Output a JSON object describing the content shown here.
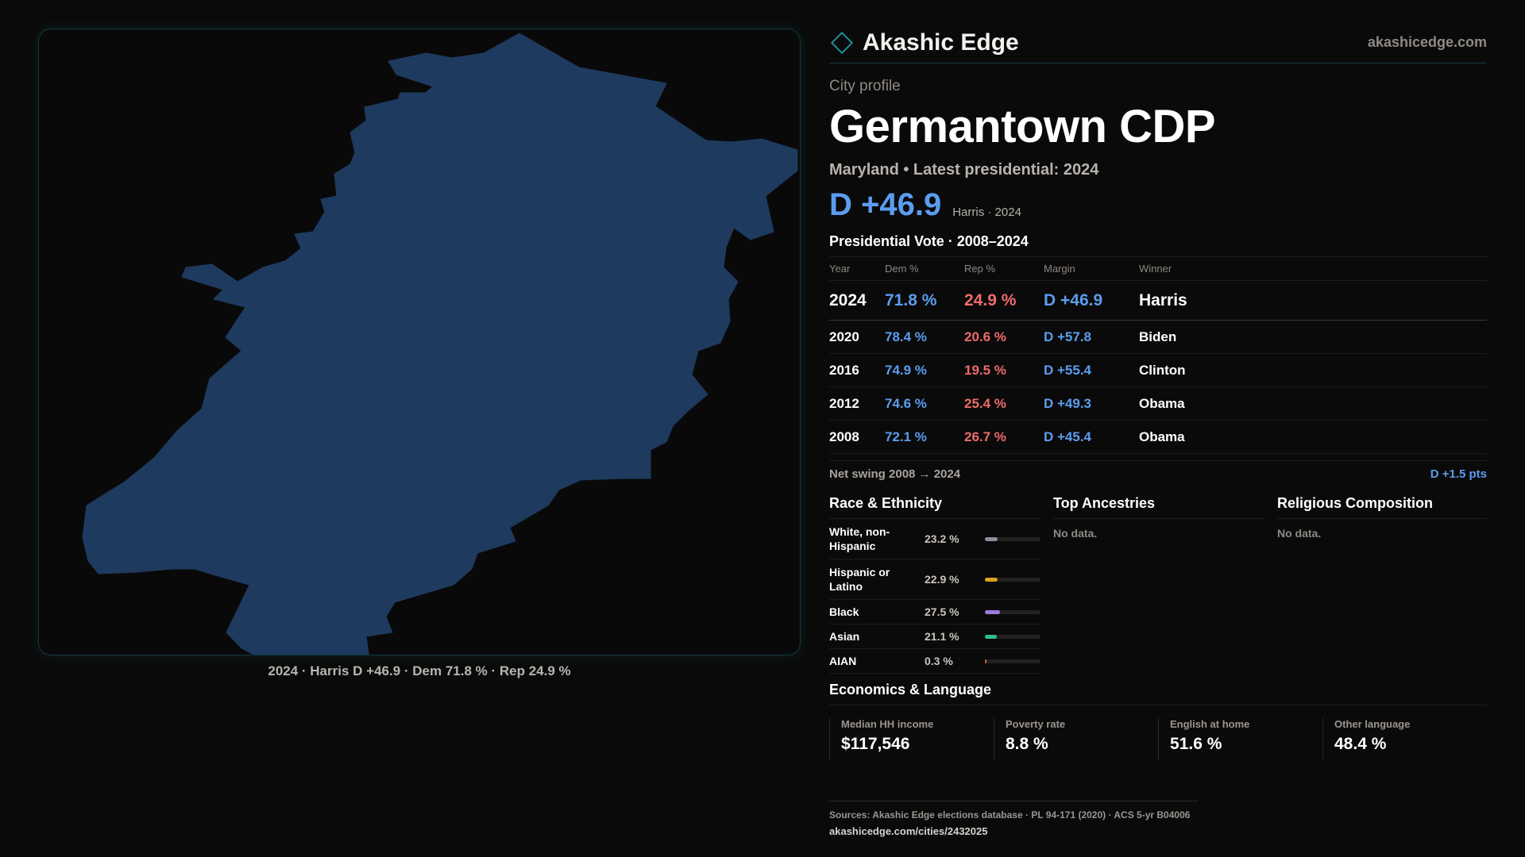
{
  "brand": {
    "name": "Akashic Edge",
    "url": "akashicedge.com"
  },
  "profile": {
    "kicker": "City profile",
    "title": "Germantown CDP",
    "subtitle": "Maryland • Latest presidential: 2024",
    "headline_margin": "D +46.9",
    "headline_note": "Harris · 2024"
  },
  "map": {
    "caption": "2024 · Harris D +46.9 · Dem 71.8 % · Rep 24.9 %",
    "fill_color": "#1e3a5f",
    "border_color": "#0f3a40"
  },
  "presidential": {
    "title": "Presidential Vote · 2008–2024",
    "headers": [
      "Year",
      "Dem %",
      "Rep %",
      "Margin",
      "Winner"
    ],
    "rows": [
      {
        "year": "2024",
        "dem": "71.8 %",
        "rep": "24.9 %",
        "margin": "D +46.9",
        "winner": "Harris"
      },
      {
        "year": "2020",
        "dem": "78.4 %",
        "rep": "20.6 %",
        "margin": "D +57.8",
        "winner": "Biden"
      },
      {
        "year": "2016",
        "dem": "74.9 %",
        "rep": "19.5 %",
        "margin": "D +55.4",
        "winner": "Clinton"
      },
      {
        "year": "2012",
        "dem": "74.6 %",
        "rep": "25.4 %",
        "margin": "D +49.3",
        "winner": "Obama"
      },
      {
        "year": "2008",
        "dem": "72.1 %",
        "rep": "26.7 %",
        "margin": "D +45.4",
        "winner": "Obama"
      }
    ],
    "swing_label": "Net swing 2008 → 2024",
    "swing_value": "D +1.5 pts"
  },
  "race": {
    "title": "Race & Ethnicity",
    "items": [
      {
        "label": "White, non-Hispanic",
        "pct": "23.2 %",
        "share": 0.232,
        "color": "#8a8f99"
      },
      {
        "label": "Hispanic or Latino",
        "pct": "22.9 %",
        "share": 0.229,
        "color": "#d9a21b"
      },
      {
        "label": "Black",
        "pct": "27.5 %",
        "share": 0.275,
        "color": "#9b7be0"
      },
      {
        "label": "Asian",
        "pct": "21.1 %",
        "share": 0.211,
        "color": "#2fbf8a"
      },
      {
        "label": "AIAN",
        "pct": "0.3 %",
        "share": 0.003,
        "color": "#c0643a"
      }
    ]
  },
  "ancestries": {
    "title": "Top Ancestries",
    "empty": "No data."
  },
  "religion": {
    "title": "Religious Composition",
    "empty": "No data."
  },
  "economics": {
    "title": "Economics & Language",
    "cells": [
      {
        "label": "Median HH income",
        "value": "$117,546"
      },
      {
        "label": "Poverty rate",
        "value": "8.8 %"
      },
      {
        "label": "English at home",
        "value": "51.6 %"
      },
      {
        "label": "Other language",
        "value": "48.4 %"
      }
    ]
  },
  "footer": {
    "sources": "Sources: Akashic Edge elections database · PL 94-171 (2020) · ACS 5-yr B04006",
    "url": "akashicedge.com/cities/2432025"
  }
}
